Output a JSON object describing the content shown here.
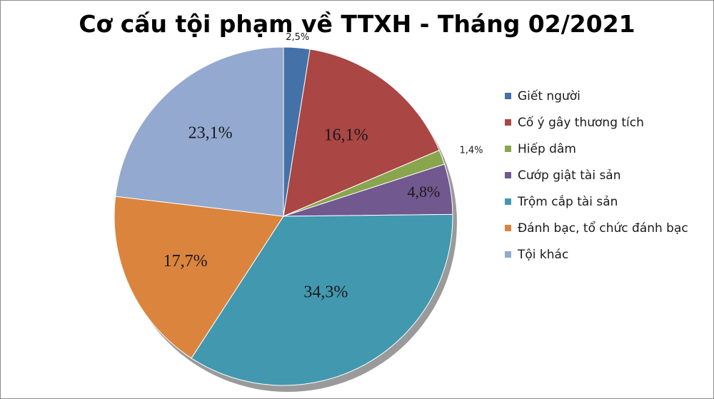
{
  "chart_data": {
    "type": "pie",
    "title": "Cơ cấu tội phạm về TTXH - Tháng 02/2021",
    "legend_position": "right",
    "categories": [
      "Giết người",
      "Cố ý gây thương tích",
      "Hiếp dâm",
      "Cướp giật tài sản",
      "Trộm cắp tài sản",
      "Đánh bạc, tổ chức đánh bạc",
      "Tội khác"
    ],
    "values": [
      2.5,
      16.1,
      1.4,
      4.8,
      34.3,
      17.7,
      23.1
    ],
    "labels": [
      "2,5%",
      "16,1%",
      "1,4%",
      "4,8%",
      "34,3%",
      "17,7%",
      "23,1%"
    ],
    "colors": [
      "#4472a8",
      "#aa4643",
      "#89a54e",
      "#71588f",
      "#4198af",
      "#db843d",
      "#93a9cf"
    ]
  }
}
